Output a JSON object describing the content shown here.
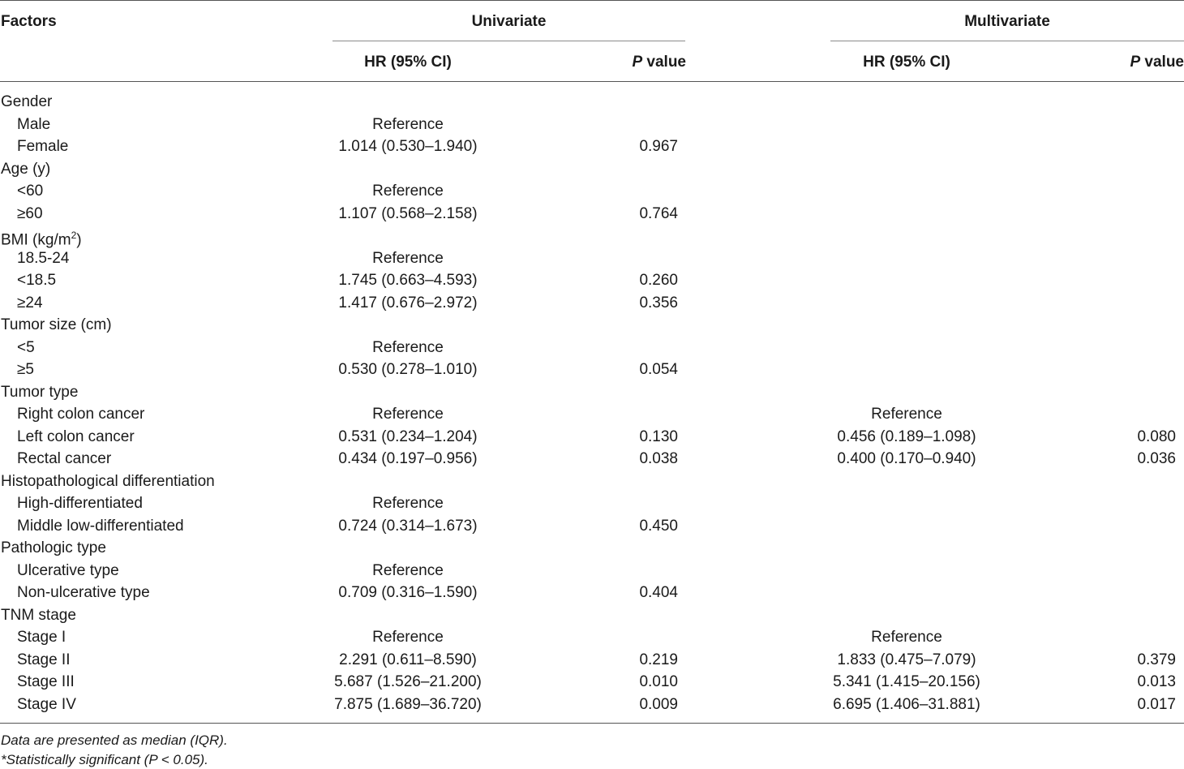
{
  "header": {
    "factors": "Factors",
    "univariate": "Univariate",
    "multivariate": "Multivariate",
    "hr": "HR (95% CI)",
    "p_italic": "P",
    "p_rest": " value"
  },
  "rows": [
    {
      "label": "Gender",
      "sub": false
    },
    {
      "label": "Male",
      "sub": true,
      "uhr": "Reference"
    },
    {
      "label": "Female",
      "sub": true,
      "uhr": "1.014 (0.530–1.940)",
      "up": "0.967"
    },
    {
      "label": "Age (y)",
      "sub": false
    },
    {
      "label": "<60",
      "sub": true,
      "uhr": "Reference"
    },
    {
      "label": "≥60",
      "sub": true,
      "uhr": "1.107 (0.568–2.158)",
      "up": "0.764"
    },
    {
      "label": "BMI (kg/m",
      "sup": "2",
      "label_end": ")",
      "sub": false
    },
    {
      "label": "18.5-24",
      "sub": true,
      "uhr": "Reference"
    },
    {
      "label": "<18.5",
      "sub": true,
      "uhr": "1.745 (0.663–4.593)",
      "up": "0.260"
    },
    {
      "label": "≥24",
      "sub": true,
      "uhr": "1.417 (0.676–2.972)",
      "up": "0.356"
    },
    {
      "label": "Tumor size (cm)",
      "sub": false
    },
    {
      "label": "<5",
      "sub": true,
      "uhr": "Reference"
    },
    {
      "label": "≥5",
      "sub": true,
      "uhr": "0.530 (0.278–1.010)",
      "up": "0.054"
    },
    {
      "label": "Tumor type",
      "sub": false
    },
    {
      "label": "Right colon cancer",
      "sub": true,
      "uhr": "Reference",
      "mhr": "Reference"
    },
    {
      "label": "Left colon cancer",
      "sub": true,
      "uhr": "0.531 (0.234–1.204)",
      "up": "0.130",
      "mhr": "0.456 (0.189–1.098)",
      "mp": "0.080"
    },
    {
      "label": "Rectal cancer",
      "sub": true,
      "uhr": "0.434 (0.197–0.956)",
      "up": "0.038",
      "mhr": "0.400 (0.170–0.940)",
      "mp": "0.036"
    },
    {
      "label": "Histopathological differentiation",
      "sub": false
    },
    {
      "label": "High-differentiated",
      "sub": true,
      "uhr": "Reference"
    },
    {
      "label": "Middle low-differentiated",
      "sub": true,
      "uhr": "0.724 (0.314–1.673)",
      "up": "0.450"
    },
    {
      "label": "Pathologic type",
      "sub": false
    },
    {
      "label": "Ulcerative type",
      "sub": true,
      "uhr": "Reference"
    },
    {
      "label": "Non-ulcerative type",
      "sub": true,
      "uhr": "0.709 (0.316–1.590)",
      "up": "0.404"
    },
    {
      "label": "TNM stage",
      "sub": false
    },
    {
      "label": "Stage I",
      "sub": true,
      "uhr": "Reference",
      "mhr": "Reference"
    },
    {
      "label": "Stage II",
      "sub": true,
      "uhr": "2.291 (0.611–8.590)",
      "up": "0.219",
      "mhr": "1.833 (0.475–7.079)",
      "mp": "0.379"
    },
    {
      "label": "Stage III",
      "sub": true,
      "uhr": "5.687 (1.526–21.200)",
      "up": "0.010",
      "mhr": "5.341 (1.415–20.156)",
      "mp": "0.013"
    },
    {
      "label": "Stage IV",
      "sub": true,
      "uhr": "7.875 (1.689–36.720)",
      "up": "0.009",
      "mhr": "6.695 (1.406–31.881)",
      "mp": "0.017"
    }
  ],
  "footnotes": {
    "note1": "Data are presented as median (IQR).",
    "note2": "*Statistically significant (P < 0.05)."
  }
}
